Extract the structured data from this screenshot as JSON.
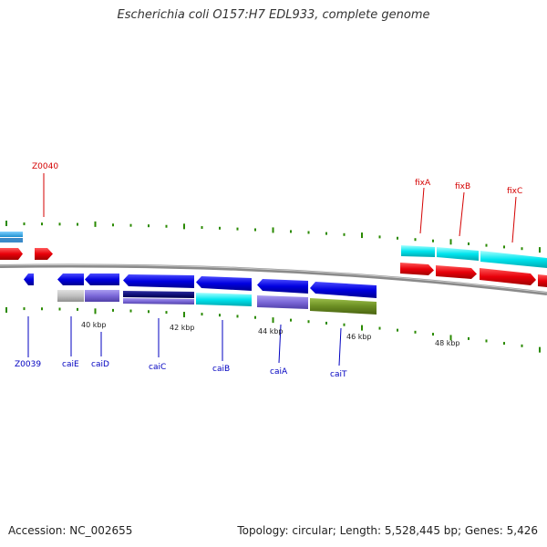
{
  "title": "Escherichia coli O157:H7 EDL933, complete genome",
  "accession": "Accession: NC_002655",
  "summary": "Topology: circular; Length: 5,528,445 bp; Genes: 5,426",
  "colors": {
    "plus_strand": "#e8000a",
    "minus_strand": "#0000e0",
    "cds_cyan": "#00e5ee",
    "cds_purple": "#7b68d8",
    "cds_navy": "#10107a",
    "cds_olive": "#6b8e23",
    "cds_gray": "#c0c0c0",
    "tick": "#2a8a00",
    "backbone": "#888888"
  },
  "genes_top": [
    {
      "name": "Z0040"
    },
    {
      "name": "fixA"
    },
    {
      "name": "fixB"
    },
    {
      "name": "fixC"
    }
  ],
  "genes_bottom": [
    {
      "name": "Z0039"
    },
    {
      "name": "caiE"
    },
    {
      "name": "caiD"
    },
    {
      "name": "caiC"
    },
    {
      "name": "caiB"
    },
    {
      "name": "caiA"
    },
    {
      "name": "caiT"
    }
  ],
  "scale_labels": [
    "40 kbp",
    "42 kbp",
    "44 kbp",
    "46 kbp",
    "48 kbp"
  ]
}
